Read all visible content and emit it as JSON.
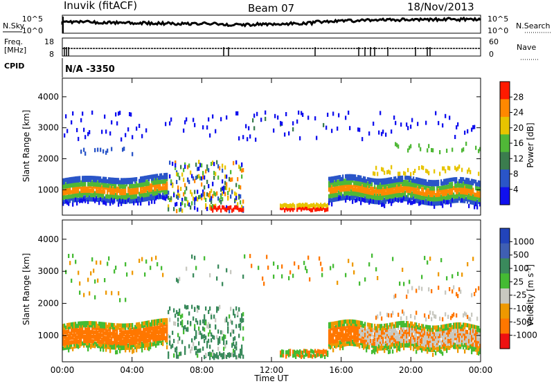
{
  "header": {
    "station": "Inuvik (fitACF)",
    "beam": "Beam 07",
    "date": "18/Nov/2013"
  },
  "side_labels": {
    "nsky": "N.Sky",
    "freq_line1": "Freq.",
    "freq_line2": "[MHz]",
    "cpid": "CPID",
    "nsearch": "N.Search",
    "nave": "Nave"
  },
  "cpid_text": "N/A -3350",
  "noise_panel": {
    "left_ticks": [
      "10^5",
      "10^0"
    ],
    "right_ticks": [
      "10^5",
      "10^0"
    ]
  },
  "freq_panel": {
    "left_ticks": [
      "18",
      "8"
    ],
    "right_ticks": [
      "60",
      "0"
    ]
  },
  "chart_data": [
    {
      "type": "heatmap",
      "name": "power",
      "ylabel": "Slant Range [km]",
      "yticks": [
        1000,
        2000,
        3000,
        4000
      ],
      "ylim": [
        180,
        4600
      ],
      "colorbar": {
        "label": "Power [dB]",
        "ticks": [
          "4",
          "8",
          "12",
          "16",
          "20",
          "24",
          "28"
        ],
        "colors": [
          "#1010ee",
          "#2a55c8",
          "#3b7d4e",
          "#50b837",
          "#e7c400",
          "#ff8800",
          "#ff1a00"
        ]
      }
    },
    {
      "type": "heatmap",
      "name": "velocity",
      "ylabel": "Slant Range [km]",
      "yticks": [
        1000,
        2000,
        3000,
        4000
      ],
      "ylim": [
        180,
        4600
      ],
      "xlabel": "Time UT",
      "xticks": [
        "00:00",
        "04:00",
        "08:00",
        "12:00",
        "16:00",
        "20:00",
        "00:00"
      ],
      "colorbar": {
        "label": "Velocity [m s^-1]",
        "ticks": [
          "1000",
          "500",
          "100",
          "25",
          "-25",
          "-100",
          "-500",
          "-1000"
        ],
        "colors": [
          "#2244bb",
          "#3f5fb3",
          "#3a8a5c",
          "#44bb33",
          "#c8c8c0",
          "#ee9900",
          "#ff7700",
          "#ee1111"
        ]
      }
    }
  ],
  "colors": {
    "background": "#ffffff",
    "axis": "#000000"
  }
}
